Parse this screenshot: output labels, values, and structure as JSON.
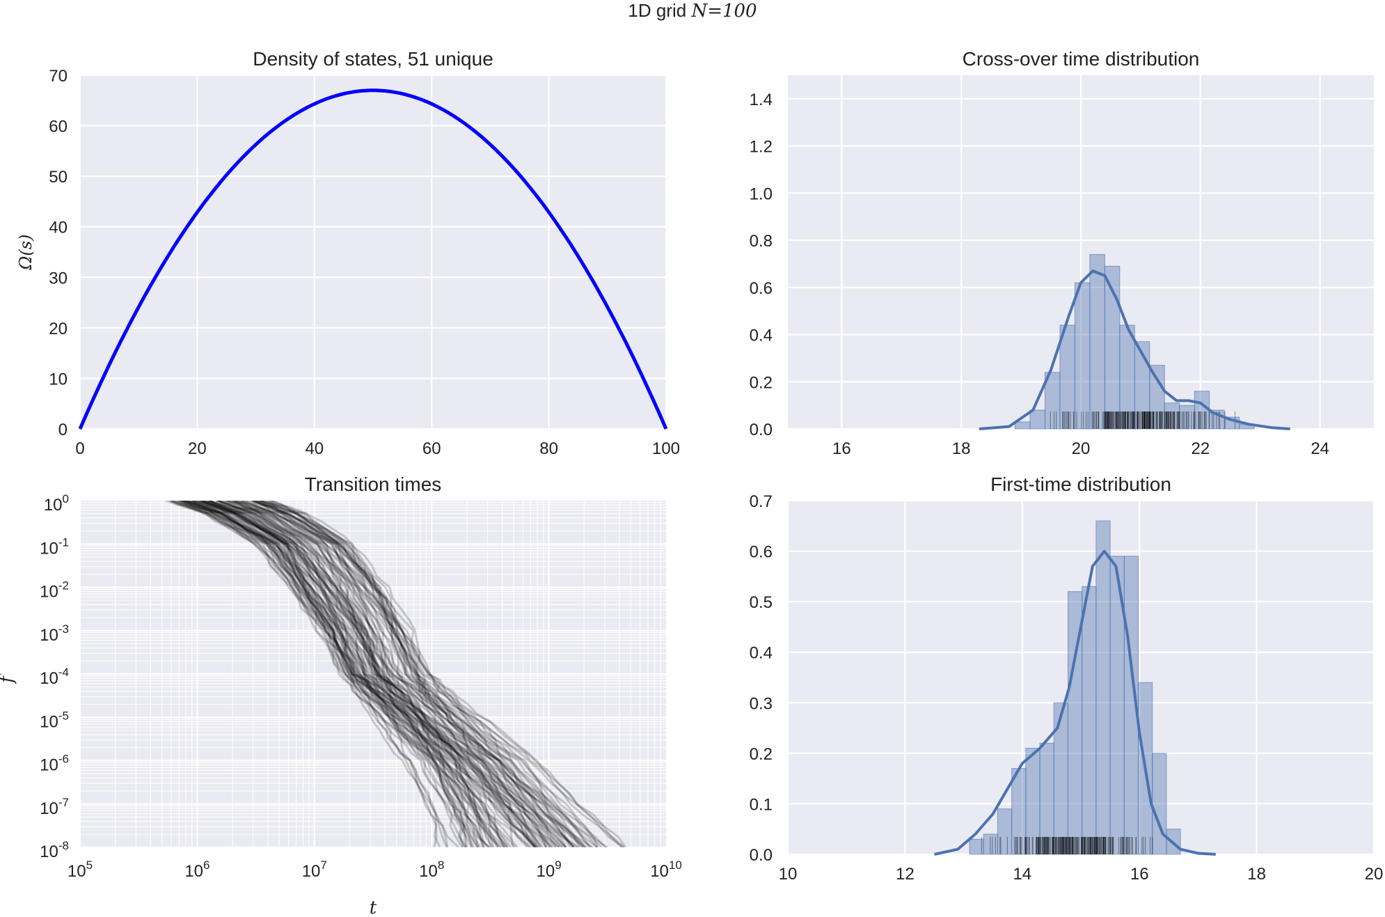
{
  "figure": {
    "suptitle": "1D grid ",
    "suptitle_math": "N=100"
  },
  "chart_data": [
    {
      "id": "dos",
      "type": "line",
      "title": "Density of states, 51 unique",
      "xlabel": "",
      "ylabel": "Ω(s)",
      "xlim": [
        0,
        100
      ],
      "ylim": [
        0,
        70
      ],
      "xticks": [
        0,
        20,
        40,
        60,
        80,
        100
      ],
      "yticks": [
        0,
        10,
        20,
        30,
        40,
        50,
        60,
        70
      ],
      "line_color": "#0000ff",
      "curve": "parabola peaking at s=50, value 67 at peak, 0 at s=0 and s=100",
      "series": [
        {
          "x": [
            0,
            5,
            10,
            15,
            20,
            25,
            30,
            35,
            40,
            45,
            50,
            55,
            60,
            65,
            70,
            75,
            80,
            85,
            90,
            95,
            100
          ],
          "values": [
            0,
            12.7,
            24.1,
            34.2,
            42.9,
            50.3,
            56.3,
            61.0,
            64.3,
            66.3,
            67.0,
            66.3,
            64.3,
            61.0,
            56.3,
            50.3,
            42.9,
            34.2,
            24.1,
            12.7,
            0
          ]
        }
      ]
    },
    {
      "id": "crossover",
      "type": "bar",
      "title": "Cross-over time distribution",
      "xlabel": "",
      "ylabel": "",
      "xlim": [
        15.1,
        24.9
      ],
      "ylim": [
        0,
        1.5
      ],
      "xticks": [
        16,
        18,
        20,
        22,
        24
      ],
      "yticks": [
        "0.0",
        "0.2",
        "0.4",
        "0.6",
        "0.8",
        "1.0",
        "1.2",
        "1.4"
      ],
      "bar_color": "#4c72b0",
      "bin_edges": [
        18.9,
        19.15,
        19.4,
        19.65,
        19.9,
        20.15,
        20.4,
        20.65,
        20.9,
        21.15,
        21.4,
        21.65,
        21.9,
        22.15,
        22.4,
        22.65,
        22.9
      ],
      "values": [
        0.03,
        0.08,
        0.24,
        0.44,
        0.62,
        0.74,
        0.69,
        0.44,
        0.37,
        0.27,
        0.11,
        0.1,
        0.16,
        0.08,
        0.05,
        0.02
      ],
      "kde_x": [
        18.3,
        18.8,
        19.2,
        19.5,
        19.8,
        20.0,
        20.2,
        20.4,
        20.6,
        20.8,
        21.0,
        21.2,
        21.4,
        21.6,
        21.8,
        22.0,
        22.2,
        22.5,
        22.8,
        23.2,
        23.5
      ],
      "kde_y": [
        0.0,
        0.01,
        0.08,
        0.25,
        0.48,
        0.62,
        0.67,
        0.65,
        0.55,
        0.42,
        0.33,
        0.24,
        0.16,
        0.12,
        0.12,
        0.11,
        0.07,
        0.04,
        0.02,
        0.005,
        0.0
      ],
      "rug_range": [
        19.0,
        22.9
      ]
    },
    {
      "id": "transition",
      "type": "line",
      "title": "Transition times",
      "xlabel": "t",
      "ylabel": "f",
      "xscale": "log",
      "yscale": "log",
      "xlim": [
        100000,
        10000000000
      ],
      "ylim": [
        1e-08,
        1
      ],
      "xticks": [
        {
          "base": "10",
          "exp": "5"
        },
        {
          "base": "10",
          "exp": "6"
        },
        {
          "base": "10",
          "exp": "7"
        },
        {
          "base": "10",
          "exp": "8"
        },
        {
          "base": "10",
          "exp": "9"
        },
        {
          "base": "10",
          "exp": "10"
        }
      ],
      "yticks": [
        {
          "base": "10",
          "exp": "0"
        },
        {
          "base": "10",
          "exp": "-1"
        },
        {
          "base": "10",
          "exp": "-2"
        },
        {
          "base": "10",
          "exp": "-3"
        },
        {
          "base": "10",
          "exp": "-4"
        },
        {
          "base": "10",
          "exp": "-5"
        },
        {
          "base": "10",
          "exp": "-6"
        },
        {
          "base": "10",
          "exp": "-7"
        },
        {
          "base": "10",
          "exp": "-8"
        }
      ],
      "line_color": "#000000",
      "num_traces": 100,
      "median_path_x": [
        1500000,
        3000000,
        8000000,
        15000000,
        25000000,
        35000000,
        50000000,
        90000000,
        150000000,
        250000000,
        400000000
      ],
      "median_path_y": [
        1,
        0.5,
        0.1,
        0.01,
        0.001,
        0.0001,
        3e-05,
        5e-06,
        1e-06,
        1e-07,
        1e-08
      ]
    },
    {
      "id": "firsttime",
      "type": "bar",
      "title": "First-time distribution",
      "xlabel": "",
      "ylabel": "",
      "xlim": [
        10,
        20
      ],
      "ylim": [
        0,
        0.7
      ],
      "xticks": [
        10,
        12,
        14,
        16,
        18,
        20
      ],
      "yticks": [
        "0.0",
        "0.1",
        "0.2",
        "0.3",
        "0.4",
        "0.5",
        "0.6",
        "0.7"
      ],
      "bar_color": "#4c72b0",
      "bin_edges": [
        13.1,
        13.34,
        13.58,
        13.82,
        14.06,
        14.3,
        14.54,
        14.78,
        15.02,
        15.26,
        15.5,
        15.74,
        15.98,
        16.22,
        16.46,
        16.7
      ],
      "values": [
        0.03,
        0.04,
        0.09,
        0.17,
        0.21,
        0.22,
        0.3,
        0.52,
        0.53,
        0.66,
        0.59,
        0.59,
        0.34,
        0.2,
        0.05
      ],
      "kde_x": [
        12.5,
        12.9,
        13.2,
        13.5,
        13.8,
        14.0,
        14.3,
        14.6,
        14.8,
        15.0,
        15.2,
        15.4,
        15.6,
        15.8,
        16.0,
        16.2,
        16.4,
        16.7,
        17.0,
        17.3
      ],
      "kde_y": [
        0.0,
        0.01,
        0.04,
        0.08,
        0.14,
        0.18,
        0.21,
        0.25,
        0.33,
        0.45,
        0.57,
        0.6,
        0.57,
        0.43,
        0.24,
        0.1,
        0.04,
        0.01,
        0.002,
        0.0
      ],
      "rug_range": [
        13.1,
        16.7
      ]
    }
  ]
}
